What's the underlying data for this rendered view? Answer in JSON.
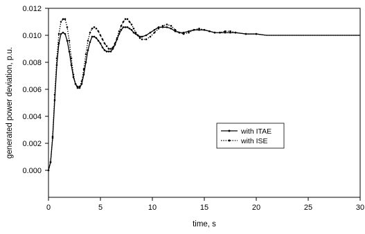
{
  "chart_data": {
    "type": "line",
    "xlabel": "time, s",
    "ylabel": "generated power deviation, p.u.",
    "xlim": [
      0,
      30
    ],
    "ylim": [
      -0.002,
      0.012
    ],
    "xticks": [
      0,
      5,
      10,
      15,
      20,
      25,
      30
    ],
    "yticks": [
      "0.000",
      "0.002",
      "0.004",
      "0.006",
      "0.008",
      "0.010",
      "0.012"
    ],
    "yticks_values": [
      0,
      0.002,
      0.004,
      0.006,
      0.008,
      0.01,
      0.012
    ],
    "legend_position": "center-right",
    "grid": false,
    "series": [
      {
        "name": "with ITAE",
        "style": "solid",
        "color": "#000000",
        "x": [
          0,
          0.2,
          0.4,
          0.6,
          0.8,
          1.0,
          1.2,
          1.4,
          1.6,
          1.8,
          2.0,
          2.2,
          2.4,
          2.6,
          2.8,
          3.0,
          3.2,
          3.4,
          3.6,
          3.8,
          4.0,
          4.2,
          4.4,
          4.6,
          4.8,
          5.0,
          5.2,
          5.4,
          5.6,
          5.8,
          6.0,
          6.2,
          6.4,
          6.6,
          6.8,
          7.0,
          7.2,
          7.4,
          7.6,
          7.8,
          8.0,
          8.2,
          8.4,
          8.6,
          8.8,
          9.0,
          9.4,
          9.8,
          10.2,
          10.6,
          11.0,
          11.4,
          11.8,
          12.2,
          12.6,
          13.0,
          13.5,
          14.0,
          14.5,
          15.0,
          15.5,
          16.0,
          16.5,
          17.0,
          17.5,
          18.0,
          19.0,
          20.0,
          21.0,
          22.0,
          23.0,
          24.0,
          25.0,
          26.0,
          27.0,
          28.0,
          29.0,
          30.0
        ],
        "y": [
          0.0,
          0.0006,
          0.0024,
          0.0052,
          0.0078,
          0.0094,
          0.0101,
          0.0102,
          0.0101,
          0.0096,
          0.0088,
          0.0078,
          0.0069,
          0.0064,
          0.0061,
          0.0061,
          0.0064,
          0.0071,
          0.008,
          0.0089,
          0.0095,
          0.0099,
          0.0099,
          0.0098,
          0.0096,
          0.0094,
          0.0091,
          0.0089,
          0.0088,
          0.0088,
          0.0088,
          0.009,
          0.0093,
          0.0097,
          0.0101,
          0.0104,
          0.0106,
          0.0106,
          0.0106,
          0.0105,
          0.0104,
          0.0102,
          0.0101,
          0.01,
          0.0099,
          0.0099,
          0.01,
          0.0102,
          0.0104,
          0.0106,
          0.0106,
          0.0106,
          0.0105,
          0.0103,
          0.0102,
          0.0102,
          0.0103,
          0.0104,
          0.0104,
          0.0104,
          0.0103,
          0.0102,
          0.0102,
          0.0102,
          0.0102,
          0.0102,
          0.0101,
          0.0101,
          0.01,
          0.01,
          0.01,
          0.01,
          0.01,
          0.01,
          0.01,
          0.01,
          0.01,
          0.01
        ]
      },
      {
        "name": "with ISE",
        "style": "dotted",
        "color": "#000000",
        "x": [
          0,
          0.2,
          0.4,
          0.6,
          0.8,
          1.0,
          1.2,
          1.4,
          1.6,
          1.8,
          2.0,
          2.2,
          2.4,
          2.6,
          2.8,
          3.0,
          3.2,
          3.4,
          3.6,
          3.8,
          4.0,
          4.2,
          4.4,
          4.6,
          4.8,
          5.0,
          5.2,
          5.4,
          5.6,
          5.8,
          6.0,
          6.2,
          6.4,
          6.6,
          6.8,
          7.0,
          7.2,
          7.4,
          7.6,
          7.8,
          8.0,
          8.2,
          8.4,
          8.6,
          8.8,
          9.0,
          9.4,
          9.8,
          10.2,
          10.6,
          11.0,
          11.4,
          11.8,
          12.2,
          12.6,
          13.0,
          13.5,
          14.0,
          14.5,
          15.0,
          15.5,
          16.0,
          16.5,
          17.0,
          17.5,
          18.0,
          19.0,
          20.0,
          21.0,
          22.0,
          23.0,
          24.0,
          25.0,
          26.0,
          27.0,
          28.0,
          29.0,
          30.0
        ],
        "y": [
          0.0,
          0.0006,
          0.0025,
          0.0056,
          0.0083,
          0.0101,
          0.011,
          0.0112,
          0.0112,
          0.0106,
          0.0096,
          0.0083,
          0.0071,
          0.0064,
          0.0062,
          0.0062,
          0.0066,
          0.0075,
          0.0086,
          0.0096,
          0.0102,
          0.0105,
          0.0106,
          0.0105,
          0.0103,
          0.01,
          0.0097,
          0.0094,
          0.0092,
          0.009,
          0.009,
          0.0091,
          0.0094,
          0.0098,
          0.0103,
          0.0107,
          0.011,
          0.0112,
          0.0112,
          0.011,
          0.0108,
          0.0105,
          0.0102,
          0.01,
          0.0098,
          0.0097,
          0.0097,
          0.0099,
          0.0102,
          0.0105,
          0.0107,
          0.0108,
          0.0107,
          0.0104,
          0.0102,
          0.0101,
          0.0102,
          0.0104,
          0.0105,
          0.0104,
          0.0103,
          0.0102,
          0.0102,
          0.0103,
          0.0103,
          0.0102,
          0.0101,
          0.0101,
          0.01,
          0.01,
          0.01,
          0.01,
          0.01,
          0.01,
          0.01,
          0.01,
          0.01,
          0.01
        ]
      }
    ]
  }
}
